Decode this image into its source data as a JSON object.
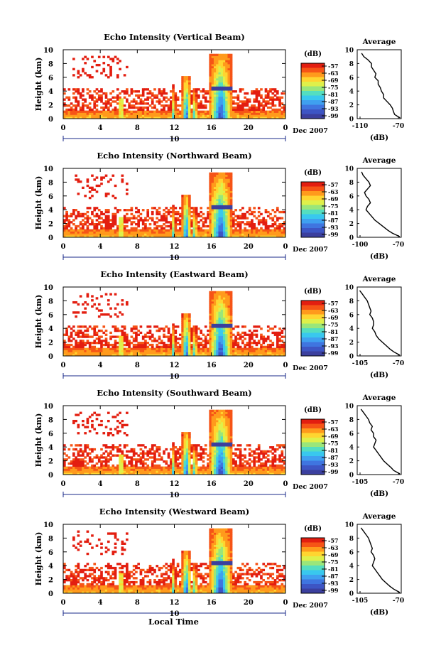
{
  "figure": {
    "xlabel": "Local Time",
    "date_label": "Dec 2007"
  },
  "colors": {
    "colorbar": [
      "#3b3f9e",
      "#3d55c4",
      "#3f75e0",
      "#3fa0f0",
      "#39c8ee",
      "#54dec0",
      "#9ae67a",
      "#dff04a",
      "#ffd530",
      "#ff9a1c",
      "#f65416",
      "#e31e10"
    ],
    "background": "#ffffff",
    "profile_line": "#000000"
  },
  "chart_data": [
    {
      "type": "heatmap",
      "title": "Echo Intensity (Vertical Beam)",
      "ylabel": "Height (km)",
      "x_ticks": [
        "0",
        "4",
        "8",
        "12",
        "16",
        "20",
        "0"
      ],
      "y_ticks": [
        "0",
        "2",
        "4",
        "6",
        "8",
        "10"
      ],
      "xlim": [
        0,
        24
      ],
      "ylim": [
        0,
        10
      ],
      "date_tick": "10",
      "colorbar_unit": "(dB)",
      "colorbar_ticks": [
        "-57",
        "-63",
        "-69",
        "-75",
        "-81",
        "-87",
        "-93",
        "-99"
      ],
      "profile": {
        "title": "Average",
        "xlabel": "(dB)",
        "x_ticks": [
          "-110",
          "-70"
        ],
        "xlim": [
          -110,
          -70
        ],
        "y_ticks": [
          "0",
          "2",
          "4",
          "6",
          "8",
          "10"
        ],
        "x": [
          -106,
          -104,
          -100,
          -97,
          -97,
          -95,
          -93,
          -94,
          -91,
          -91,
          -89,
          -88,
          -86,
          -86,
          -83,
          -80,
          -78,
          -77,
          -76,
          -73,
          -71
        ],
        "y": [
          9.5,
          9.0,
          8.5,
          8.0,
          7.5,
          7.0,
          6.5,
          6.0,
          5.5,
          5.0,
          4.5,
          4.0,
          3.5,
          3.0,
          2.5,
          2.0,
          1.5,
          1.0,
          0.6,
          0.3,
          0.1
        ]
      }
    },
    {
      "type": "heatmap",
      "title": "Echo Intensity (Northward Beam)",
      "ylabel": "Height (km)",
      "x_ticks": [
        "0",
        "4",
        "8",
        "12",
        "16",
        "20",
        "0"
      ],
      "y_ticks": [
        "0",
        "2",
        "4",
        "6",
        "8",
        "10"
      ],
      "xlim": [
        0,
        24
      ],
      "ylim": [
        0,
        10
      ],
      "date_tick": "10",
      "colorbar_unit": "(dB)",
      "colorbar_ticks": [
        "-57",
        "-63",
        "-69",
        "-75",
        "-81",
        "-87",
        "-93",
        "-99"
      ],
      "profile": {
        "title": "Average",
        "xlabel": "(dB)",
        "x_ticks": [
          "-100",
          "-70"
        ],
        "xlim": [
          -100,
          -70
        ],
        "y_ticks": [
          "0",
          "2",
          "4",
          "6",
          "8",
          "10"
        ],
        "x": [
          -97,
          -96,
          -94,
          -92,
          -91,
          -93,
          -95,
          -94,
          -92,
          -91,
          -93,
          -94,
          -92,
          -90,
          -88,
          -85,
          -82,
          -79,
          -76,
          -73,
          -71
        ],
        "y": [
          9.5,
          9.0,
          8.5,
          8.0,
          7.5,
          7.0,
          6.5,
          6.0,
          5.5,
          5.0,
          4.5,
          4.0,
          3.5,
          3.0,
          2.5,
          2.0,
          1.5,
          1.0,
          0.6,
          0.3,
          0.1
        ]
      }
    },
    {
      "type": "heatmap",
      "title": "Echo Intensity (Eastward Beam)",
      "ylabel": "Height (km)",
      "x_ticks": [
        "0",
        "4",
        "8",
        "12",
        "16",
        "20",
        "0"
      ],
      "y_ticks": [
        "0",
        "2",
        "4",
        "6",
        "8",
        "10"
      ],
      "xlim": [
        0,
        24
      ],
      "ylim": [
        0,
        10
      ],
      "date_tick": "10",
      "colorbar_unit": "(dB)",
      "colorbar_ticks": [
        "-57",
        "-63",
        "-69",
        "-75",
        "-81",
        "-87",
        "-93",
        "-99"
      ],
      "profile": {
        "title": "Average",
        "xlabel": "(dB)",
        "x_ticks": [
          "-105",
          "-70"
        ],
        "xlim": [
          -105,
          -70
        ],
        "y_ticks": [
          "0",
          "2",
          "4",
          "6",
          "8",
          "10"
        ],
        "x": [
          -103,
          -101,
          -99,
          -97,
          -96,
          -95,
          -94,
          -95,
          -93,
          -92,
          -92,
          -93,
          -91,
          -90,
          -88,
          -85,
          -82,
          -79,
          -76,
          -73,
          -71
        ],
        "y": [
          9.5,
          9.0,
          8.5,
          8.0,
          7.5,
          7.0,
          6.5,
          6.0,
          5.5,
          5.0,
          4.5,
          4.0,
          3.5,
          3.0,
          2.5,
          2.0,
          1.5,
          1.0,
          0.6,
          0.3,
          0.1
        ]
      }
    },
    {
      "type": "heatmap",
      "title": "Echo Intensity (Southward Beam)",
      "ylabel": "Height (km)",
      "x_ticks": [
        "0",
        "4",
        "8",
        "12",
        "16",
        "20",
        "0"
      ],
      "y_ticks": [
        "0",
        "2",
        "4",
        "6",
        "8",
        "10"
      ],
      "xlim": [
        0,
        24
      ],
      "ylim": [
        0,
        10
      ],
      "date_tick": "10",
      "colorbar_unit": "(dB)",
      "colorbar_ticks": [
        "-57",
        "-63",
        "-69",
        "-75",
        "-81",
        "-87",
        "-93",
        "-99"
      ],
      "profile": {
        "title": "Average",
        "xlabel": "(dB)",
        "x_ticks": [
          "-105",
          "-70"
        ],
        "xlim": [
          -105,
          -70
        ],
        "y_ticks": [
          "0",
          "2",
          "4",
          "6",
          "8",
          "10"
        ],
        "x": [
          -102,
          -100,
          -98,
          -96,
          -95,
          -93,
          -94,
          -92,
          -92,
          -90,
          -91,
          -92,
          -90,
          -88,
          -86,
          -84,
          -81,
          -78,
          -76,
          -73,
          -71
        ],
        "y": [
          9.5,
          9.0,
          8.5,
          8.0,
          7.5,
          7.0,
          6.5,
          6.0,
          5.5,
          5.0,
          4.5,
          4.0,
          3.5,
          3.0,
          2.5,
          2.0,
          1.5,
          1.0,
          0.6,
          0.3,
          0.1
        ]
      }
    },
    {
      "type": "heatmap",
      "title": "Echo Intensity (Westward Beam)",
      "ylabel": "Height (km)",
      "x_ticks": [
        "0",
        "4",
        "8",
        "12",
        "16",
        "20",
        "0"
      ],
      "y_ticks": [
        "0",
        "2",
        "4",
        "6",
        "8",
        "10"
      ],
      "xlim": [
        0,
        24
      ],
      "ylim": [
        0,
        10
      ],
      "date_tick": "10",
      "colorbar_unit": "(dB)",
      "colorbar_ticks": [
        "-57",
        "-63",
        "-69",
        "-75",
        "-81",
        "-87",
        "-93",
        "-99"
      ],
      "profile": {
        "title": "Average",
        "xlabel": "(dB)",
        "x_ticks": [
          "-105",
          "-70"
        ],
        "xlim": [
          -105,
          -70
        ],
        "y_ticks": [
          "0",
          "2",
          "4",
          "6",
          "8",
          "10"
        ],
        "x": [
          -102,
          -100,
          -98,
          -96,
          -95,
          -94,
          -93,
          -94,
          -92,
          -91,
          -92,
          -93,
          -91,
          -89,
          -87,
          -85,
          -82,
          -79,
          -76,
          -73,
          -71
        ],
        "y": [
          9.5,
          9.0,
          8.5,
          8.0,
          7.5,
          7.0,
          6.5,
          6.0,
          5.5,
          5.0,
          4.5,
          4.0,
          3.5,
          3.0,
          2.5,
          2.0,
          1.5,
          1.0,
          0.6,
          0.3,
          0.1
        ]
      }
    }
  ]
}
